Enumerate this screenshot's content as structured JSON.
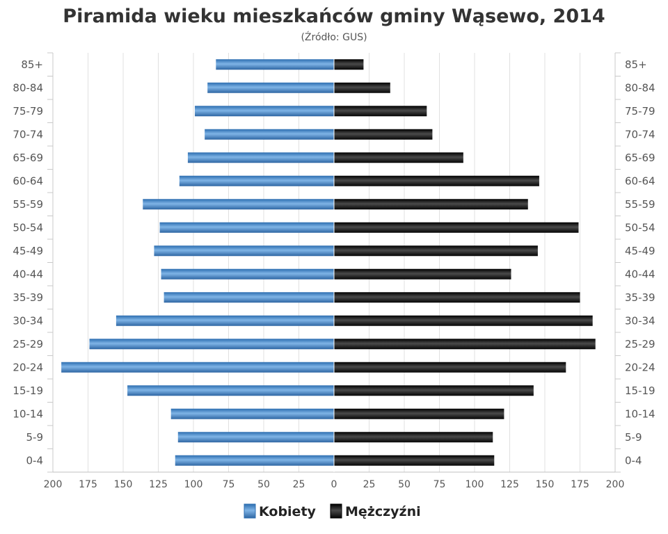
{
  "chart_data": {
    "type": "bar",
    "title": "Piramida wieku mieszkańców gminy Wąsewo, 2014",
    "subtitle": "(Źródło: GUS)",
    "categories": [
      "0-4",
      "5-9",
      "10-14",
      "15-19",
      "20-24",
      "25-29",
      "30-34",
      "35-39",
      "40-44",
      "45-49",
      "50-54",
      "55-59",
      "60-64",
      "65-69",
      "70-74",
      "75-79",
      "80-84",
      "85+"
    ],
    "series": [
      {
        "name": "Kobiety",
        "color": "#4a87c5",
        "values": [
          113,
          111,
          116,
          147,
          194,
          174,
          155,
          121,
          123,
          128,
          124,
          136,
          110,
          104,
          92,
          99,
          90,
          84
        ]
      },
      {
        "name": "Mężczyźni",
        "color": "#1a1a1a",
        "values": [
          114,
          113,
          121,
          142,
          165,
          186,
          184,
          175,
          126,
          145,
          174,
          138,
          146,
          92,
          70,
          66,
          40,
          21
        ]
      }
    ],
    "x_ticks": [
      "200",
      "175",
      "150",
      "125",
      "100",
      "75",
      "50",
      "25",
      "0",
      "25",
      "50",
      "75",
      "100",
      "125",
      "150",
      "175",
      "200"
    ],
    "xlim": [
      -200,
      200
    ],
    "grid": true,
    "legend_position": "bottom"
  }
}
